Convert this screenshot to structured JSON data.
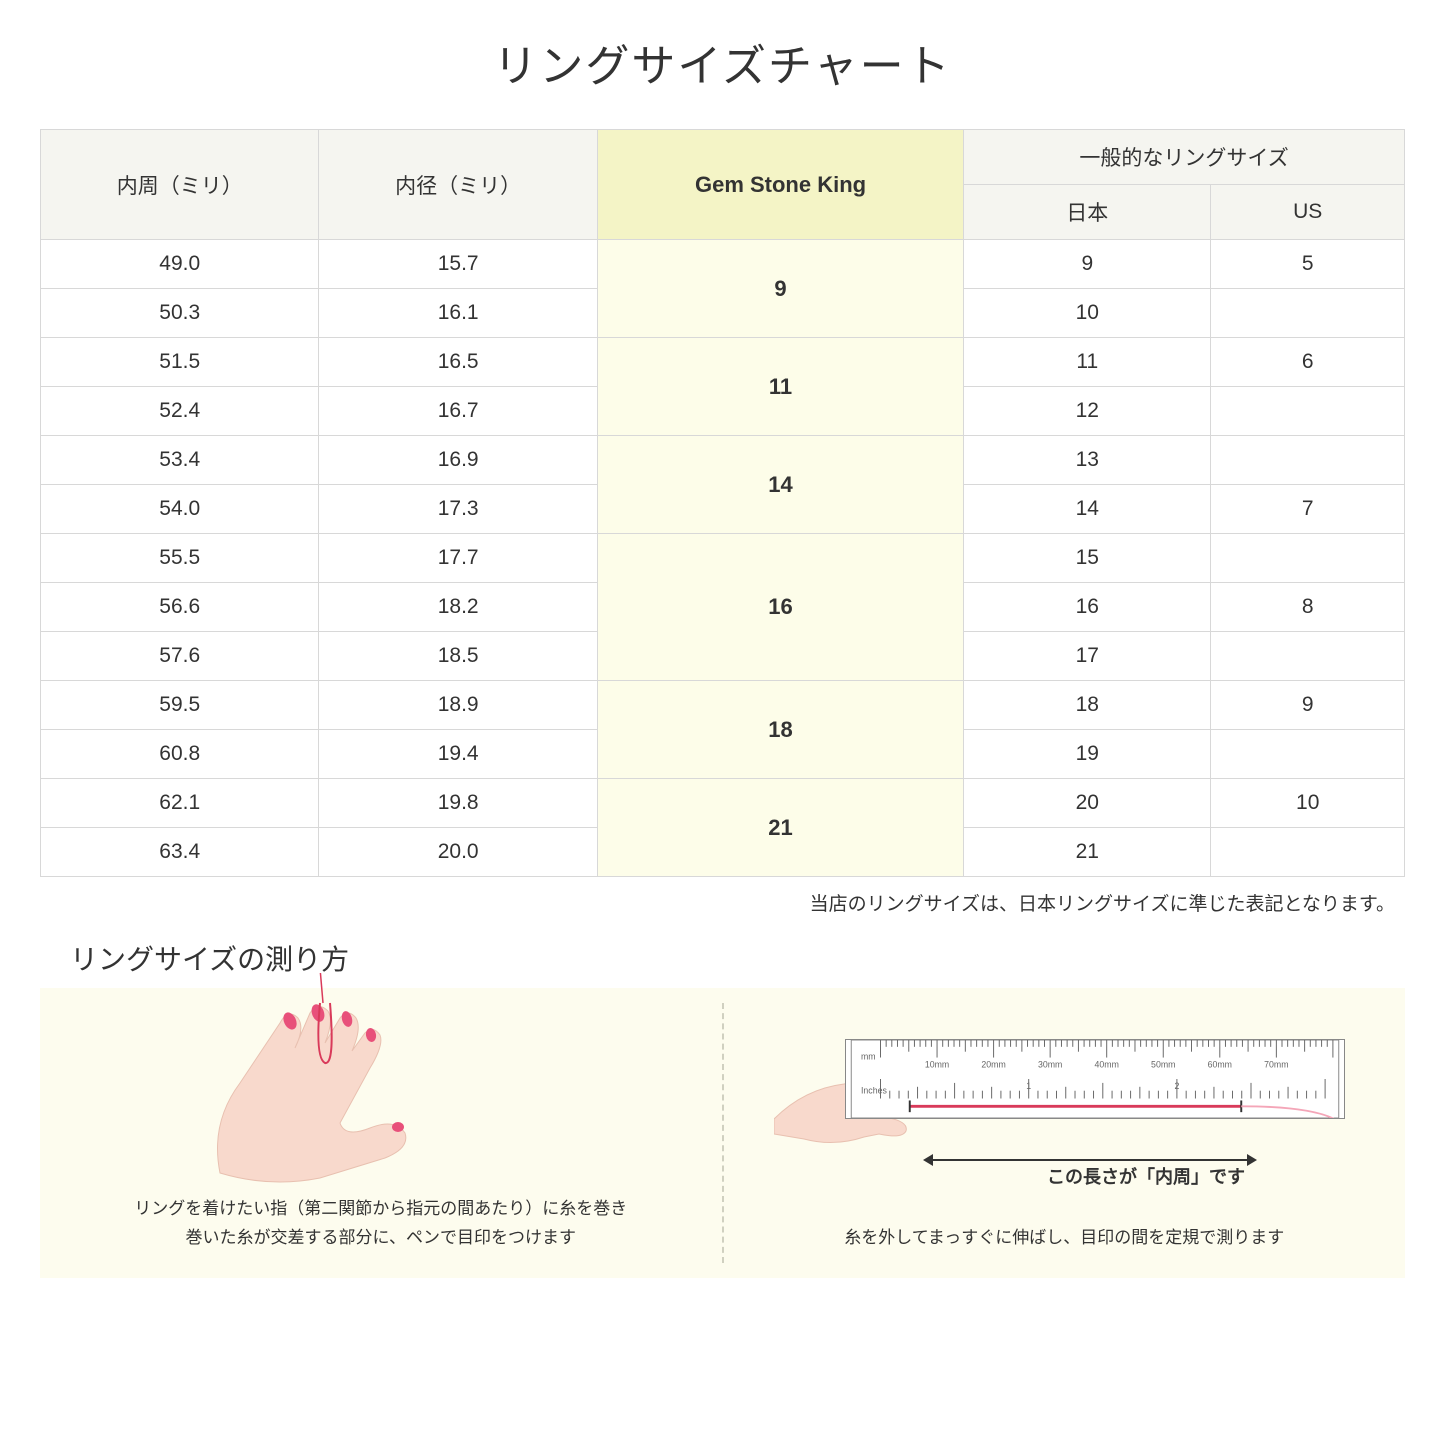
{
  "title": "リングサイズチャート",
  "table": {
    "headers": {
      "inner_circ": "内周（ミリ）",
      "inner_diam": "内径（ミリ）",
      "gsk": "Gem Stone King",
      "general": "一般的なリングサイズ",
      "japan": "日本",
      "us": "US"
    },
    "rows": [
      {
        "circ": "49.0",
        "diam": "15.7",
        "gsk": "9",
        "gsk_span": 2,
        "jp": "9",
        "us": "5"
      },
      {
        "circ": "50.3",
        "diam": "16.1",
        "jp": "10",
        "us": ""
      },
      {
        "circ": "51.5",
        "diam": "16.5",
        "gsk": "11",
        "gsk_span": 2,
        "jp": "11",
        "us": "6"
      },
      {
        "circ": "52.4",
        "diam": "16.7",
        "jp": "12",
        "us": ""
      },
      {
        "circ": "53.4",
        "diam": "16.9",
        "gsk": "14",
        "gsk_span": 2,
        "jp": "13",
        "us": ""
      },
      {
        "circ": "54.0",
        "diam": "17.3",
        "jp": "14",
        "us": "7"
      },
      {
        "circ": "55.5",
        "diam": "17.7",
        "gsk": "16",
        "gsk_span": 3,
        "jp": "15",
        "us": ""
      },
      {
        "circ": "56.6",
        "diam": "18.2",
        "jp": "16",
        "us": "8"
      },
      {
        "circ": "57.6",
        "diam": "18.5",
        "jp": "17",
        "us": ""
      },
      {
        "circ": "59.5",
        "diam": "18.9",
        "gsk": "18",
        "gsk_span": 2,
        "jp": "18",
        "us": "9"
      },
      {
        "circ": "60.8",
        "diam": "19.4",
        "jp": "19",
        "us": ""
      },
      {
        "circ": "62.1",
        "diam": "19.8",
        "gsk": "21",
        "gsk_span": 2,
        "jp": "20",
        "us": "10"
      },
      {
        "circ": "63.4",
        "diam": "20.0",
        "jp": "21",
        "us": ""
      }
    ]
  },
  "note": "当店のリングサイズは、日本リングサイズに準じた表記となります。",
  "howto": {
    "title": "リングサイズの測り方",
    "left_text": "リングを着けたい指（第二関節から指元の間あたり）に糸を巻き\n巻いた糸が交差する部分に、ペンで目印をつけます",
    "right_text": "糸を外してまっすぐに伸ばし、目印の間を定規で測ります",
    "measure_label": "この長さが「内周」です",
    "ruler_mm": "mm",
    "ruler_inches": "Inches",
    "ruler_mm_labels": [
      "10mm",
      "20mm",
      "30mm",
      "40mm",
      "50mm",
      "60mm",
      "70mm"
    ],
    "ruler_inch_labels": [
      "1",
      "2"
    ]
  },
  "colors": {
    "header_bg": "#f5f5f0",
    "gsk_header_bg": "#f4f4c6",
    "gsk_cell_bg": "#fdfde9",
    "howto_bg": "#fdfcee",
    "skin": "#f8d9cc",
    "nail": "#e8507a",
    "thread": "#d93a5a"
  }
}
